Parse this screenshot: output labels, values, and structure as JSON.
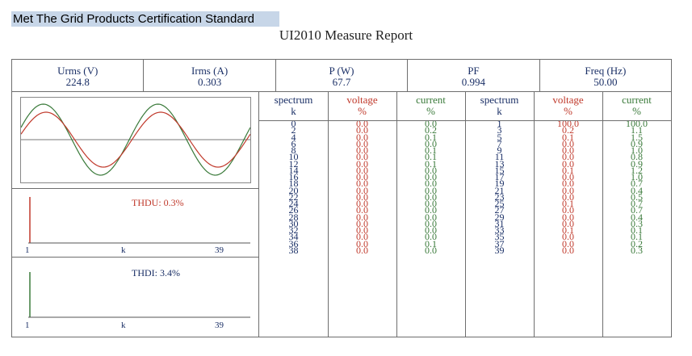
{
  "header": {
    "banner": "Met The Grid Products Certification Standard"
  },
  "report": {
    "title": "UI2010 Measure Report"
  },
  "stats": [
    {
      "label": "Urms (V)",
      "value": "224.8"
    },
    {
      "label": "Irms (A)",
      "value": "0.303"
    },
    {
      "label": "P (W)",
      "value": "67.7"
    },
    {
      "label": "PF",
      "value": "0.994"
    },
    {
      "label": "Freq (Hz)",
      "value": "50.00"
    }
  ],
  "thdu": {
    "label": "THDU: 0.3%",
    "axis_start": "1",
    "axis_mid": "k",
    "axis_end": "39",
    "color": "#c0392b"
  },
  "thdi": {
    "label": "THDI: 3.4%",
    "axis_start": "1",
    "axis_mid": "k",
    "axis_end": "39",
    "color": "#3a7a3a"
  },
  "table": {
    "headers": [
      {
        "name": "spectrum",
        "unit": "k"
      },
      {
        "name": "voltage",
        "unit": "%"
      },
      {
        "name": "current",
        "unit": "%"
      },
      {
        "name": "spectrum",
        "unit": "k"
      },
      {
        "name": "voltage",
        "unit": "%"
      },
      {
        "name": "current",
        "unit": "%"
      }
    ],
    "even_k": [
      "0",
      "2",
      "4",
      "6",
      "8",
      "10",
      "12",
      "14",
      "16",
      "18",
      "20",
      "22",
      "24",
      "26",
      "28",
      "30",
      "32",
      "34",
      "36",
      "38"
    ],
    "even_voltage": [
      "0.0",
      "0.0",
      "0.0",
      "0.0",
      "0.0",
      "0.0",
      "0.0",
      "0.0",
      "0.0",
      "0.0",
      "0.0",
      "0.0",
      "0.0",
      "0.0",
      "0.0",
      "0.0",
      "0.0",
      "0.0",
      "0.0",
      "0.0"
    ],
    "even_current": [
      "0.0",
      "0.2",
      "0.1",
      "0.0",
      "0.1",
      "0.1",
      "0.1",
      "0.0",
      "0.0",
      "0.0",
      "0.0",
      "0.0",
      "0.0",
      "0.0",
      "0.0",
      "0.0",
      "0.0",
      "0.0",
      "0.1",
      "0.0"
    ],
    "odd_k": [
      "1",
      "3",
      "5",
      "7",
      "9",
      "11",
      "13",
      "15",
      "17",
      "19",
      "21",
      "23",
      "25",
      "27",
      "29",
      "31",
      "33",
      "35",
      "37",
      "39"
    ],
    "odd_voltage": [
      "100.0",
      "0.2",
      "0.1",
      "0.0",
      "0.0",
      "0.0",
      "0.0",
      "0.1",
      "0.0",
      "0.0",
      "0.0",
      "0.0",
      "0.1",
      "0.0",
      "0.0",
      "0.0",
      "0.1",
      "0.0",
      "0.0",
      "0.0"
    ],
    "odd_current": [
      "100.0",
      "1.1",
      "1.5",
      "0.9",
      "1.0",
      "0.8",
      "0.9",
      "1.2",
      "1.0",
      "0.7",
      "0.4",
      "0.5",
      "0.7",
      "0.7",
      "0.4",
      "0.3",
      "0.1",
      "0.1",
      "0.2",
      "0.3"
    ]
  },
  "colors": {
    "voltage": "#c0392b",
    "current": "#3a7a3a",
    "text": "#1a2f66"
  }
}
